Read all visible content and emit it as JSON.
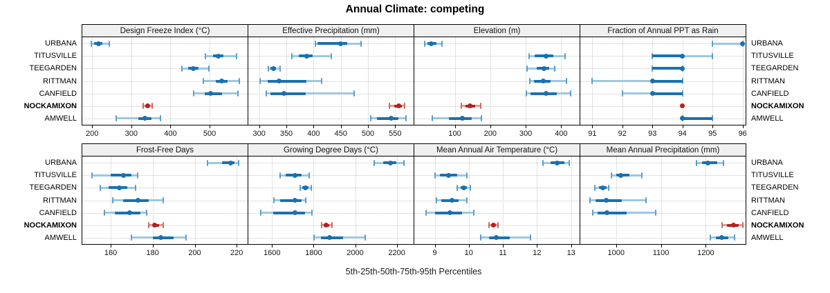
{
  "colors": {
    "blue_dark": "#1a70b0",
    "blue_light": "#9cc8e0",
    "blue_cap": "#5a9fce",
    "red_dark": "#b02320",
    "red_light": "#e09a92",
    "red_cap": "#cc6a5e",
    "panel_header_bg": "#f0f0f0",
    "gridline": "#c6c6c6"
  },
  "chart_data": {
    "type": "dotplot",
    "title": "Annual Climate: competing",
    "xlabel": "5th-25th-50th-75th-95th Percentiles",
    "percentiles": [
      "5th",
      "25th",
      "50th",
      "75th",
      "95th"
    ],
    "legend_position": "none",
    "grid": "dotted",
    "locations": [
      "URBANA",
      "TITUSVILLE",
      "TEEGARDEN",
      "RITTMAN",
      "CANFIELD",
      "NOCKAMIXON",
      "AMWELL"
    ],
    "highlight": "NOCKAMIXON",
    "panels": [
      {
        "title": "Design Freeze Index (°C)",
        "row": 0,
        "col": 0,
        "xlim": [
          175,
          597
        ],
        "ticks": [
          200,
          300,
          400,
          500
        ],
        "series": [
          [
            198,
            205,
            217,
            227,
            244
          ],
          [
            489,
            508,
            522,
            536,
            568
          ],
          [
            429,
            446,
            459,
            472,
            498
          ],
          [
            484,
            515,
            531,
            545,
            575
          ],
          [
            460,
            487,
            503,
            532,
            572
          ],
          [
            330,
            336,
            341,
            347,
            353
          ],
          [
            261,
            318,
            334,
            352,
            375
          ]
        ]
      },
      {
        "title": "Effective Precipitation (mm)",
        "row": 0,
        "col": 1,
        "xlim": [
          280,
          584
        ],
        "ticks": [
          300,
          350,
          400,
          450,
          500,
          550
        ],
        "series": [
          [
            404,
            407,
            450,
            462,
            487
          ],
          [
            360,
            373,
            388,
            398,
            432
          ],
          [
            317,
            321,
            326,
            331,
            338
          ],
          [
            302,
            315,
            337,
            387,
            415
          ],
          [
            313,
            321,
            345,
            386,
            475
          ],
          [
            540,
            549,
            557,
            562,
            568
          ],
          [
            505,
            516,
            543,
            556,
            570
          ]
        ]
      },
      {
        "title": "Elevation (m)",
        "row": 0,
        "col": 2,
        "xlim": [
          -14,
          452
        ],
        "ticks": [
          100,
          200,
          300,
          400
        ],
        "series": [
          [
            15,
            24,
            34,
            48,
            64
          ],
          [
            310,
            326,
            357,
            377,
            412
          ],
          [
            304,
            332,
            352,
            367,
            382
          ],
          [
            312,
            323,
            350,
            371,
            414
          ],
          [
            302,
            313,
            357,
            387,
            427
          ],
          [
            118,
            130,
            143,
            158,
            173
          ],
          [
            37,
            83,
            122,
            147,
            175
          ]
        ]
      },
      {
        "title": "Fraction of Annual PPT as Rain",
        "row": 0,
        "col": 3,
        "xlim": [
          90.6,
          96.1
        ],
        "ticks": [
          91,
          92,
          93,
          94,
          95,
          96
        ],
        "series": [
          [
            95,
            96,
            96,
            96,
            96
          ],
          [
            93,
            93,
            94,
            94,
            95
          ],
          [
            93,
            93,
            94,
            94,
            94
          ],
          [
            91,
            93,
            93,
            94,
            94
          ],
          [
            92,
            93,
            93,
            94,
            94
          ],
          [
            94,
            94,
            94,
            94,
            94
          ],
          [
            94,
            94,
            94,
            95,
            95
          ]
        ]
      },
      {
        "title": "Frost-Free Days",
        "row": 1,
        "col": 0,
        "xlim": [
          146.5,
          225.2
        ],
        "ticks": [
          160,
          180,
          200,
          220
        ],
        "series": [
          [
            206,
            213,
            217,
            219,
            221
          ],
          [
            151,
            160,
            166,
            170,
            173
          ],
          [
            155,
            159,
            164,
            168,
            172
          ],
          [
            161,
            166,
            173,
            178,
            185
          ],
          [
            157,
            162,
            169,
            174,
            177
          ],
          [
            178,
            180,
            181,
            183,
            185
          ],
          [
            170,
            180,
            184,
            190,
            196
          ]
        ]
      },
      {
        "title": "Growing Degree Days (°C)",
        "row": 1,
        "col": 1,
        "xlim": [
          1486,
          2281
        ],
        "ticks": [
          1600,
          1800,
          2000,
          2200
        ],
        "series": [
          [
            2092,
            2133,
            2168,
            2198,
            2236
          ],
          [
            1638,
            1665,
            1709,
            1741,
            1779
          ],
          [
            1736,
            1747,
            1760,
            1774,
            1788
          ],
          [
            1608,
            1638,
            1712,
            1741,
            1763
          ],
          [
            1546,
            1606,
            1709,
            1758,
            1792
          ],
          [
            1839,
            1850,
            1861,
            1874,
            1888
          ],
          [
            1801,
            1834,
            1877,
            1942,
            2049
          ]
        ]
      },
      {
        "title": "Mean Annual Air Temperature (°C)",
        "row": 1,
        "col": 2,
        "xlim": [
          8.4,
          13.25
        ],
        "ticks": [
          9,
          10,
          11,
          12,
          13
        ],
        "series": [
          [
            12.17,
            12.4,
            12.6,
            12.8,
            12.95
          ],
          [
            9.0,
            9.15,
            9.4,
            9.65,
            9.95
          ],
          [
            9.65,
            9.75,
            9.85,
            9.95,
            10.05
          ],
          [
            9.05,
            9.2,
            9.5,
            9.7,
            9.95
          ],
          [
            8.75,
            9.0,
            9.45,
            9.8,
            10.15
          ],
          [
            10.6,
            10.65,
            10.72,
            10.78,
            10.85
          ],
          [
            10.35,
            10.6,
            10.8,
            11.2,
            11.8
          ]
        ]
      },
      {
        "title": "Mean Annual Precipitation (mm)",
        "row": 1,
        "col": 3,
        "xlim": [
          920,
          1289
        ],
        "ticks": [
          1000,
          1100,
          1200
        ],
        "series": [
          [
            1180,
            1192,
            1205,
            1225,
            1240
          ],
          [
            990,
            1000,
            1011,
            1030,
            1058
          ],
          [
            953,
            962,
            970,
            978,
            984
          ],
          [
            942,
            954,
            978,
            1012,
            1067
          ],
          [
            948,
            959,
            979,
            1023,
            1089
          ],
          [
            1237,
            1248,
            1262,
            1274,
            1283
          ],
          [
            1210,
            1222,
            1235,
            1250,
            1265
          ]
        ]
      }
    ]
  }
}
